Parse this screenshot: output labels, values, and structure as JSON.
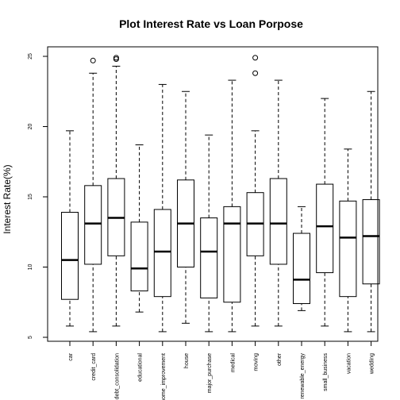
{
  "chart_data": {
    "type": "box",
    "title": "Plot Interest Rate vs Loan Porpose",
    "xlabel": "",
    "ylabel": "Interest Rate(%)",
    "ylim": [
      5,
      25.5
    ],
    "yticks": [
      5,
      10,
      15,
      20,
      25
    ],
    "grid": false,
    "categories": [
      "car",
      "credit_card",
      "debt_consolidation",
      "educational",
      "home_improvement",
      "house",
      "major_purchase",
      "medical",
      "moving",
      "other",
      "renewable_energy",
      "small_business",
      "vacation",
      "wedding"
    ],
    "boxes": [
      {
        "min": 5.8,
        "q1": 7.7,
        "median": 10.5,
        "q3": 13.9,
        "max": 19.7,
        "outliers": []
      },
      {
        "min": 5.4,
        "q1": 10.2,
        "median": 13.1,
        "q3": 15.8,
        "max": 23.8,
        "outliers": [
          24.7
        ]
      },
      {
        "min": 5.8,
        "q1": 10.8,
        "median": 13.5,
        "q3": 16.3,
        "max": 24.3,
        "outliers": [
          24.8,
          24.9
        ]
      },
      {
        "min": 6.8,
        "q1": 8.3,
        "median": 9.9,
        "q3": 13.2,
        "max": 18.7,
        "outliers": []
      },
      {
        "min": 5.4,
        "q1": 7.9,
        "median": 11.1,
        "q3": 14.1,
        "max": 23.0,
        "outliers": []
      },
      {
        "min": 6.0,
        "q1": 10.0,
        "median": 13.1,
        "q3": 16.2,
        "max": 22.5,
        "outliers": []
      },
      {
        "min": 5.4,
        "q1": 7.8,
        "median": 11.1,
        "q3": 13.5,
        "max": 19.4,
        "outliers": []
      },
      {
        "min": 5.4,
        "q1": 7.5,
        "median": 13.1,
        "q3": 14.3,
        "max": 23.3,
        "outliers": []
      },
      {
        "min": 5.8,
        "q1": 10.8,
        "median": 13.1,
        "q3": 15.3,
        "max": 19.7,
        "outliers": [
          23.8,
          24.9
        ]
      },
      {
        "min": 5.8,
        "q1": 10.2,
        "median": 13.1,
        "q3": 16.3,
        "max": 23.3,
        "outliers": []
      },
      {
        "min": 6.9,
        "q1": 7.4,
        "median": 9.1,
        "q3": 12.4,
        "max": 14.3,
        "outliers": []
      },
      {
        "min": 5.8,
        "q1": 9.6,
        "median": 12.9,
        "q3": 15.9,
        "max": 22.0,
        "outliers": []
      },
      {
        "min": 5.4,
        "q1": 7.9,
        "median": 12.1,
        "q3": 14.7,
        "max": 18.4,
        "outliers": []
      },
      {
        "min": 5.4,
        "q1": 8.8,
        "median": 12.2,
        "q3": 14.8,
        "max": 22.5,
        "outliers": []
      }
    ]
  }
}
